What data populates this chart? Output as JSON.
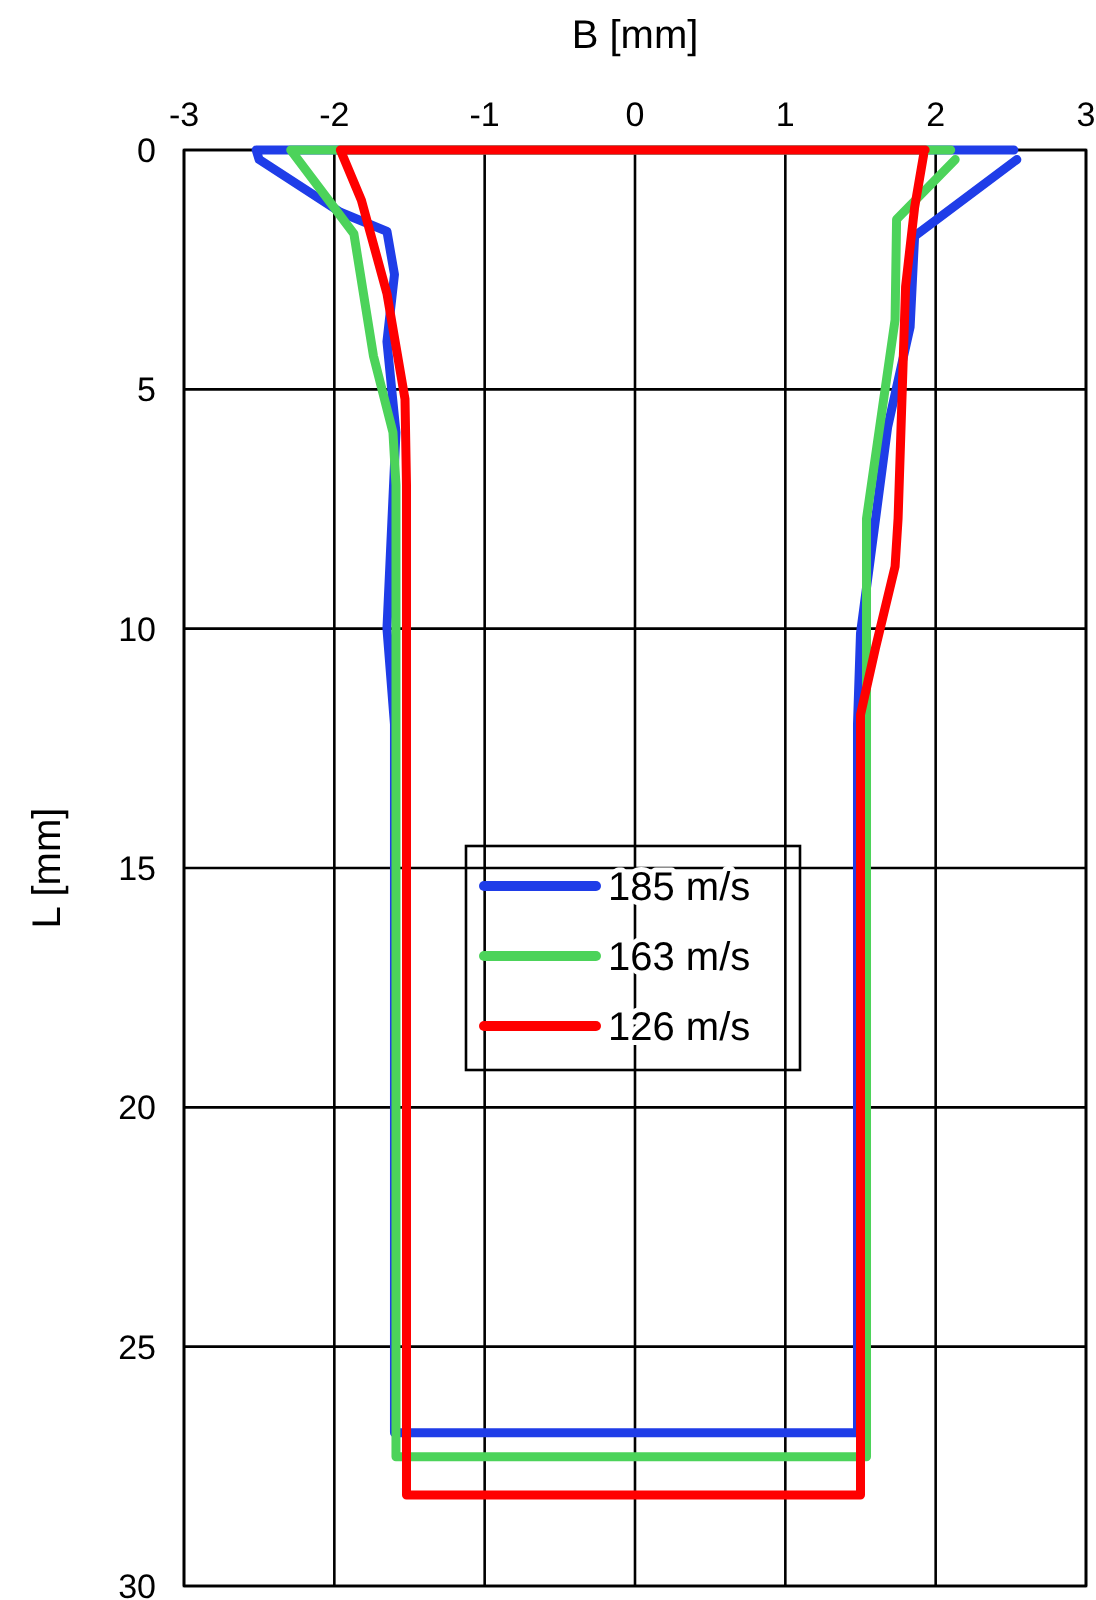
{
  "chart_data": {
    "type": "line",
    "xlabel": "B [mm]",
    "ylabel": "L [mm]",
    "xlim": [
      -3,
      3
    ],
    "xticks": [
      -3,
      -2,
      -1,
      0,
      1,
      2,
      3
    ],
    "ylim": [
      30,
      0
    ],
    "yticks": [
      0,
      5,
      10,
      15,
      20,
      25,
      30
    ],
    "grid": true,
    "legend": "center",
    "marker": "none",
    "line_style": "solid",
    "series": [
      {
        "name": "185 m/s",
        "color": "#1f3de8",
        "x": [
          2.52,
          -2.52,
          -2.5,
          -1.96,
          -1.65,
          -1.6,
          -1.65,
          -1.59,
          -1.65,
          -1.6,
          -1.6,
          1.48,
          1.48,
          1.5,
          1.68,
          1.83,
          1.86,
          2.54
        ],
        "values": [
          0,
          0,
          0.2,
          1.3,
          1.7,
          2.6,
          4.0,
          5.9,
          10,
          12,
          26.8,
          26.8,
          12,
          10.1,
          5.8,
          3.7,
          1.8,
          0.2
        ]
      },
      {
        "name": "163 m/s",
        "color": "#4cd35a",
        "x": [
          2.1,
          -2.29,
          -1.87,
          -1.74,
          -1.61,
          -1.59,
          -1.59,
          1.54,
          1.54,
          1.73,
          1.74,
          2.13
        ],
        "values": [
          0,
          0,
          1.75,
          4.3,
          5.9,
          7,
          27.3,
          27.3,
          7.7,
          3.55,
          1.45,
          0.2
        ]
      },
      {
        "name": "126 m/s",
        "color": "#ff0000",
        "x": [
          1.93,
          -1.96,
          -1.82,
          -1.65,
          -1.53,
          -1.52,
          -1.52,
          1.5,
          1.5,
          1.6,
          1.73,
          1.75,
          1.8,
          1.86,
          1.92
        ],
        "values": [
          0,
          0,
          1.05,
          3.0,
          5.2,
          7,
          28.1,
          28.1,
          11.8,
          10.4,
          8.7,
          7.7,
          2.85,
          1.2,
          0.1
        ]
      }
    ]
  }
}
